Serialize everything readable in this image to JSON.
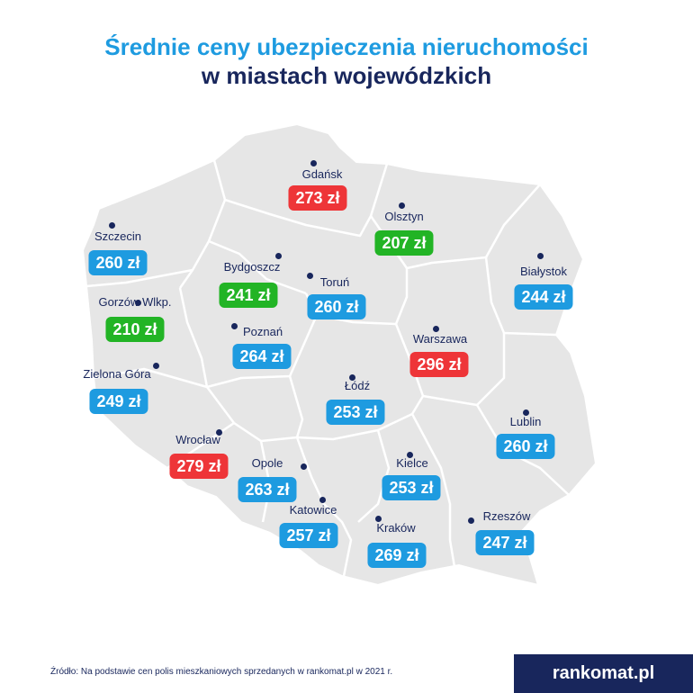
{
  "title_line1": "Średnie ceny ubezpieczenia nieruchomości",
  "title_line2": "w miastach wojewódzkich",
  "source_note": "Źródło: Na podstawie cen polis mieszkaniowych sprzedanych w rankomat.pl w 2021 r.",
  "logo_text": "rankomat.pl",
  "colors": {
    "low": "#22b425",
    "mid": "#1e9be0",
    "high": "#ee3538",
    "map_fill": "#e6e6e6",
    "border": "#ffffff",
    "text_dark": "#18265c"
  },
  "cities": [
    {
      "name": "Gdańsk",
      "price": "273 zł",
      "level": "high"
    },
    {
      "name": "Olsztyn",
      "price": "207 zł",
      "level": "low"
    },
    {
      "name": "Szczecin",
      "price": "260 zł",
      "level": "mid"
    },
    {
      "name": "Bydgoszcz",
      "price": "241 zł",
      "level": "low"
    },
    {
      "name": "Toruń",
      "price": "260 zł",
      "level": "mid"
    },
    {
      "name": "Białystok",
      "price": "244 zł",
      "level": "mid"
    },
    {
      "name": "Gorzów Wlkp.",
      "price": "210 zł",
      "level": "low"
    },
    {
      "name": "Poznań",
      "price": "264 zł",
      "level": "mid"
    },
    {
      "name": "Warszawa",
      "price": "296 zł",
      "level": "high"
    },
    {
      "name": "Zielona Góra",
      "price": "249 zł",
      "level": "mid"
    },
    {
      "name": "Łódź",
      "price": "253 zł",
      "level": "mid"
    },
    {
      "name": "Lublin",
      "price": "260 zł",
      "level": "mid"
    },
    {
      "name": "Wrocław",
      "price": "279 zł",
      "level": "high"
    },
    {
      "name": "Opole",
      "price": "263 zł",
      "level": "mid"
    },
    {
      "name": "Kielce",
      "price": "253 zł",
      "level": "mid"
    },
    {
      "name": "Katowice",
      "price": "257 zł",
      "level": "mid"
    },
    {
      "name": "Kraków",
      "price": "269 zł",
      "level": "mid"
    },
    {
      "name": "Rzeszów",
      "price": "247 zł",
      "level": "mid"
    }
  ]
}
